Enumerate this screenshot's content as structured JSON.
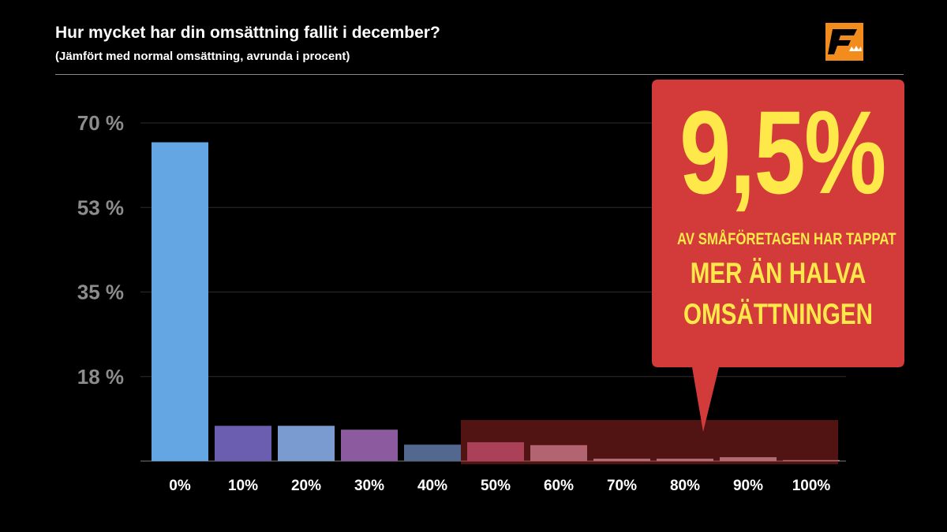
{
  "header": {
    "title": "Hur mycket har din omsättning fallit i december?",
    "subtitle": "(Jämfört med normal omsättning, avrunda i procent)"
  },
  "logo": {
    "icon": "f-brand-logo-icon",
    "color": "#f28c1c"
  },
  "callout": {
    "big_value": "9,5%",
    "line1": "AV SMÅFÖRETAGEN HAR TAPPAT",
    "line2": "MER ÄN HALVA",
    "line3": "OMSÄTTNINGEN",
    "background": "#d23b39",
    "text_color": "#ffe94a"
  },
  "chart_data": {
    "type": "bar",
    "categories": [
      "0%",
      "10%",
      "20%",
      "30%",
      "40%",
      "50%",
      "60%",
      "70%",
      "80%",
      "90%",
      "100%"
    ],
    "values": [
      66,
      7.3,
      7.3,
      6.5,
      3.4,
      3.9,
      3.3,
      0.5,
      0.5,
      0.8,
      0.2
    ],
    "colors": [
      "#64a6e3",
      "#6b5db0",
      "#7a9bcf",
      "#8c5a9e",
      "#52688f",
      "#9a4f78",
      "#a88ba1",
      "#a897a6",
      "#a897a6",
      "#a897a6",
      "#a897a6"
    ],
    "yticks": [
      "18 %",
      "35 %",
      "53 %",
      "70 %"
    ],
    "ytick_values": [
      17.5,
      35,
      52.5,
      70
    ],
    "ylim": [
      0,
      70
    ],
    "highlight_range": [
      "50%",
      "100%"
    ],
    "highlight_color": "#c0302e",
    "grid": true
  }
}
